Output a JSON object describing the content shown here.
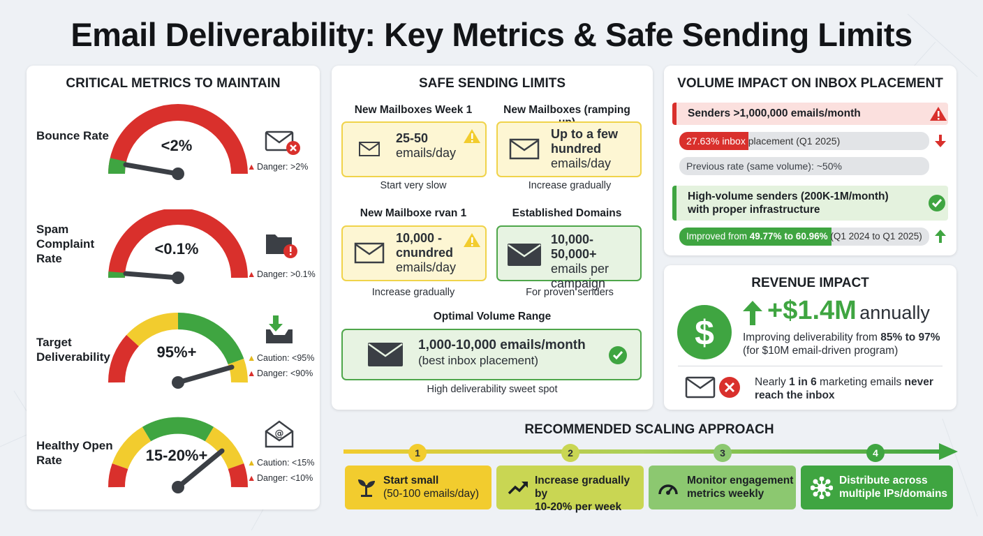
{
  "title": "Email Deliverability: Key Metrics & Safe Sending Limits",
  "colors": {
    "red": "#d9302c",
    "yellow": "#f2cc2e",
    "green": "#3fa541",
    "light_green": "#8cc860",
    "dark": "#3b3f45"
  },
  "critical": {
    "heading": "CRITICAL METRICS TO MAINTAIN",
    "metrics": [
      {
        "label": "Bounce Rate",
        "value": "<2%",
        "warnings": [
          "Danger: >2%"
        ],
        "icon": "envelope-x-icon",
        "needle_fraction": 0.02
      },
      {
        "label": "Spam Complaint Rate",
        "value": "<0.1%",
        "warnings": [
          "Danger: >0.1%"
        ],
        "icon": "folder-alert-icon",
        "needle_fraction": 0.01
      },
      {
        "label": "Target Deliverability",
        "value": "95%+",
        "warnings": [
          "Caution: <95%",
          "Danger: <90%"
        ],
        "icon": "inbox-download-icon",
        "needle_fraction": 0.9
      },
      {
        "label": "Healthy Open Rate",
        "value": "15-20%+",
        "warnings": [
          "Caution: <15%",
          "Danger: <10%"
        ],
        "icon": "envelope-at-icon",
        "needle_fraction": 0.76
      }
    ]
  },
  "limits": {
    "heading": "SAFE SENDING LIMITS",
    "cards": [
      {
        "head": "New Mailboxes Week 1",
        "line1": "25-50",
        "line2": "emails/day",
        "sub": "Start very slow",
        "tone": "yellow",
        "alert": true
      },
      {
        "head": "New Mailboxes (ramping up)",
        "line1": "Up to a few hundred",
        "line2": "emails/day",
        "sub": "Increase gradually",
        "tone": "yellow",
        "alert": false
      },
      {
        "head": "New Mailboxe rvan 1",
        "line1": "10,000 - cnundred",
        "line2": "emails/day",
        "sub": "Increase gradually",
        "tone": "yellow",
        "alert": true
      },
      {
        "head": "Established Domains",
        "line1": "10,000-50,000+",
        "line2": "emails per campaign",
        "sub": "For proven senders",
        "tone": "green",
        "alert": false
      }
    ],
    "optimal_head": "Optimal Volume Range",
    "optimal_main": "1,000-10,000 emails/month",
    "optimal_note": "(best inbox placement)",
    "optimal_sub": "High deliverability sweet spot"
  },
  "volume": {
    "heading": "VOLUME IMPACT ON INBOX PLACEMENT",
    "high_label": "Senders >1,000,000 emails/month",
    "high_rate_pct": "27.63% inbox",
    "high_rate_rest": " placement (Q1 2025)",
    "high_rate_fraction": 0.2763,
    "prev_rate": "Previous rate (same volume): ~50%",
    "mid_label": "High-volume senders (200K-1M/month) with proper infrastructure",
    "improved_a": "Improved from ",
    "improved_b": "49.77% to 60.96%",
    "improved_c": " (Q1 2024 to Q1 2025)",
    "improved_fraction": 0.6096
  },
  "revenue": {
    "heading": "REVENUE IMPACT",
    "amount": "+$1.4M",
    "annual": "annually",
    "line1_a": "Improving deliverability from ",
    "line1_b": "85% to 97%",
    "line2": "(for $10M email-driven program)",
    "never_a": "Nearly ",
    "never_b": "1 in 6",
    "never_c": " marketing emails ",
    "never_d": "never",
    "never_e": "reach the inbox"
  },
  "scaling": {
    "heading": "RECOMMENDED SCALING APPROACH",
    "steps": [
      {
        "num": "1",
        "line1": "Start small",
        "line2": "(50-100 emails/day)",
        "icon": "sprout-icon",
        "color": "#f2cc2e"
      },
      {
        "num": "2",
        "line1": "Increase gradually by",
        "line2": "10-20% per week",
        "icon": "trend-up-icon",
        "color": "#c9d653"
      },
      {
        "num": "3",
        "line1": "Monitor engagement",
        "line2": "metrics weekly",
        "icon": "speedometer-icon",
        "color": "#8cc870"
      },
      {
        "num": "4",
        "line1": "Distribute across",
        "line2": "multiple IPs/domains",
        "icon": "network-icon",
        "color": "#3fa541"
      }
    ]
  }
}
